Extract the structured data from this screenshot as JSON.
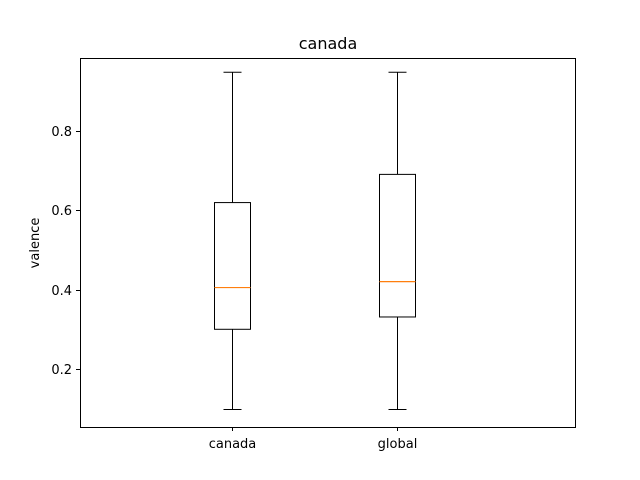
{
  "chart_data": {
    "type": "box",
    "title": "canada",
    "xlabel": "",
    "ylabel": "valence",
    "ylim": [
      0.054,
      0.983
    ],
    "yticks": [
      "0.2",
      "0.4",
      "0.6",
      "0.8"
    ],
    "ytick_values": [
      0.2,
      0.4,
      0.6,
      0.8
    ],
    "categories": [
      "canada",
      "global"
    ],
    "boxes": [
      {
        "category": "canada",
        "whisker_low": 0.098,
        "q1": 0.3,
        "median": 0.405,
        "q3": 0.619,
        "whisker_high": 0.947
      },
      {
        "category": "global",
        "whisker_low": 0.098,
        "q1": 0.331,
        "median": 0.42,
        "q3": 0.69,
        "whisker_high": 0.947
      }
    ],
    "grid": false,
    "colors": {
      "box": "#000000",
      "median": "#ff7f0e",
      "whisker": "#000000"
    }
  }
}
